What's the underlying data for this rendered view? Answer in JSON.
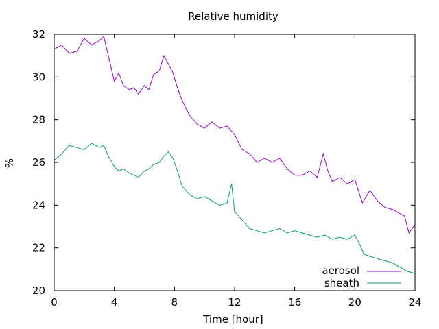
{
  "chart_data": {
    "type": "line",
    "title": "Relative humidity",
    "xlabel": "Time [hour]",
    "ylabel": "%",
    "xlim": [
      0,
      24
    ],
    "ylim": [
      20,
      32
    ],
    "x_ticks": [
      0,
      4,
      8,
      12,
      16,
      20,
      24
    ],
    "y_ticks": [
      20,
      22,
      24,
      26,
      28,
      30,
      32
    ],
    "grid": false,
    "legend_position": "bottom-right",
    "series": [
      {
        "name": "aerosol",
        "color": "#9400d3",
        "x": [
          0,
          0.5,
          1,
          1.5,
          2,
          2.5,
          3,
          3.3,
          3.6,
          4,
          4.3,
          4.6,
          5,
          5.3,
          5.6,
          6,
          6.3,
          6.6,
          7,
          7.3,
          7.6,
          7.9,
          8.2,
          8.5,
          9,
          9.5,
          10,
          10.5,
          11,
          11.5,
          12,
          12.5,
          13,
          13.5,
          14,
          14.5,
          15,
          15.5,
          16,
          16.5,
          17,
          17.5,
          17.9,
          18.2,
          18.5,
          19,
          19.5,
          20,
          20.5,
          21,
          21.5,
          22,
          22.5,
          23,
          23.3,
          23.6,
          24
        ],
        "values": [
          31.3,
          31.5,
          31.1,
          31.2,
          31.8,
          31.5,
          31.7,
          31.9,
          31.0,
          29.8,
          30.2,
          29.6,
          29.4,
          29.5,
          29.2,
          29.6,
          29.4,
          30.1,
          30.3,
          31.0,
          30.6,
          30.2,
          29.5,
          28.9,
          28.2,
          27.8,
          27.6,
          27.9,
          27.6,
          27.7,
          27.3,
          26.6,
          26.4,
          26.0,
          26.2,
          26.0,
          26.2,
          25.7,
          25.4,
          25.4,
          25.6,
          25.3,
          26.4,
          25.6,
          25.1,
          25.3,
          25.0,
          25.2,
          24.1,
          24.7,
          24.2,
          23.9,
          23.8,
          23.6,
          23.5,
          22.7,
          23.1
        ]
      },
      {
        "name": "sheath",
        "color": "#009e73",
        "x": [
          0,
          0.5,
          1,
          1.5,
          2,
          2.5,
          3,
          3.3,
          3.6,
          4,
          4.3,
          4.6,
          5,
          5.3,
          5.6,
          6,
          6.3,
          6.6,
          7,
          7.3,
          7.6,
          7.9,
          8.2,
          8.5,
          9,
          9.5,
          10,
          10.5,
          11,
          11.5,
          11.8,
          12,
          12.5,
          13,
          13.5,
          14,
          14.5,
          15,
          15.5,
          16,
          16.5,
          17,
          17.5,
          18,
          18.5,
          19,
          19.5,
          20,
          20.3,
          20.6,
          21,
          21.5,
          22,
          22.5,
          23,
          23.5,
          24
        ],
        "values": [
          26.1,
          26.4,
          26.8,
          26.7,
          26.6,
          26.9,
          26.7,
          26.8,
          26.3,
          25.8,
          25.6,
          25.7,
          25.5,
          25.4,
          25.3,
          25.6,
          25.7,
          25.9,
          26.0,
          26.3,
          26.5,
          26.2,
          25.6,
          24.9,
          24.5,
          24.3,
          24.4,
          24.2,
          24.0,
          24.1,
          25.0,
          23.7,
          23.3,
          22.9,
          22.8,
          22.7,
          22.8,
          22.9,
          22.7,
          22.8,
          22.7,
          22.6,
          22.5,
          22.6,
          22.4,
          22.5,
          22.4,
          22.6,
          22.2,
          21.7,
          21.6,
          21.5,
          21.4,
          21.3,
          21.1,
          20.9,
          20.8
        ]
      }
    ]
  }
}
